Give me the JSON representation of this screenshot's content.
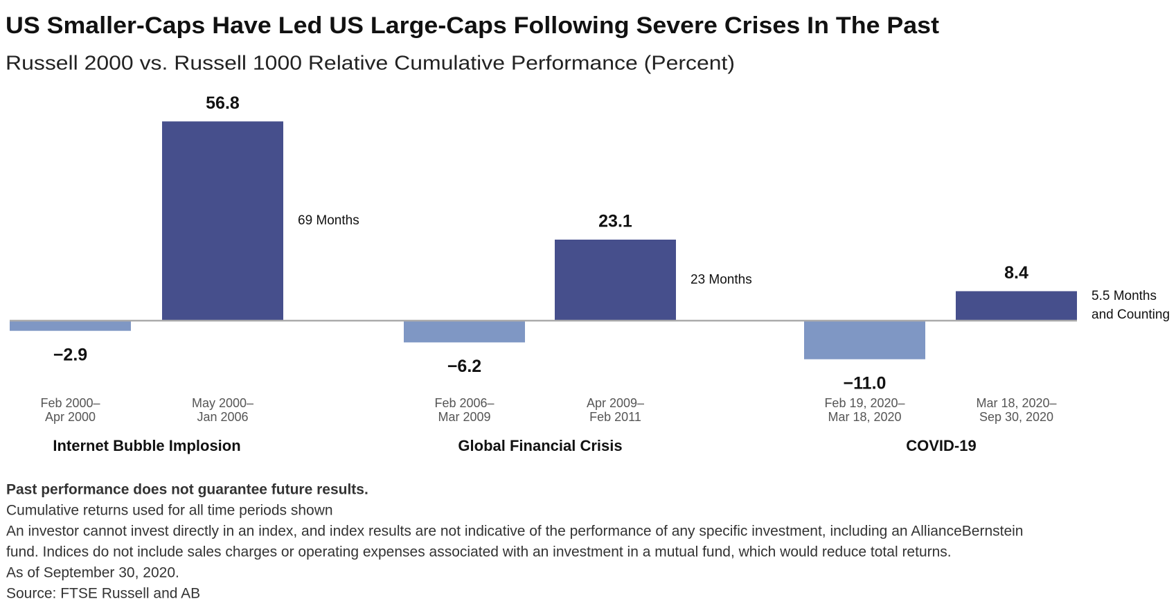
{
  "chart_data": {
    "type": "bar",
    "title": "US Smaller-Caps Have Led US Large-Caps Following Severe Crises In The Past",
    "subtitle": "Russell 2000 vs. Russell 1000 Relative Cumulative Performance (Percent)",
    "categories": [
      [
        "Feb 2000–",
        "Apr 2000"
      ],
      [
        "May 2000–",
        "Jan 2006"
      ],
      [
        "Feb 2006–",
        "Mar 2009"
      ],
      [
        "Apr 2009–",
        "Feb 2011"
      ],
      [
        "Feb 19, 2020–",
        "Mar 18, 2020"
      ],
      [
        "Mar 18, 2020–",
        "Sep 30, 2020"
      ]
    ],
    "values": [
      -2.9,
      56.8,
      -6.2,
      23.1,
      -11.0,
      8.4
    ],
    "value_labels": [
      "−2.9",
      "56.8",
      "−6.2",
      "23.1",
      "−11.0",
      "8.4"
    ],
    "colors": [
      "#7f97c4",
      "#464f8c",
      "#7f97c4",
      "#464f8c",
      "#7f97c4",
      "#464f8c"
    ],
    "groups": [
      {
        "name": "Internet Bubble Implosion",
        "duration": [
          "69 Months"
        ]
      },
      {
        "name": "Global Financial Crisis",
        "duration": [
          "23 Months"
        ]
      },
      {
        "name": "COVID-19",
        "duration": [
          "5.5 Months",
          "and Counting"
        ]
      }
    ],
    "notes": [
      "Past performance does not guarantee future results.",
      "Cumulative returns used for all time periods shown",
      "An investor cannot invest directly in an index, and index results are not indicative of the performance of any specific investment, including an AllianceBernstein",
      "fund. Indices do not include sales charges or operating expenses associated with an investment in a mutual fund, which would reduce total returns.",
      "As of September 30, 2020.",
      "Source: FTSE Russell and AB"
    ]
  }
}
